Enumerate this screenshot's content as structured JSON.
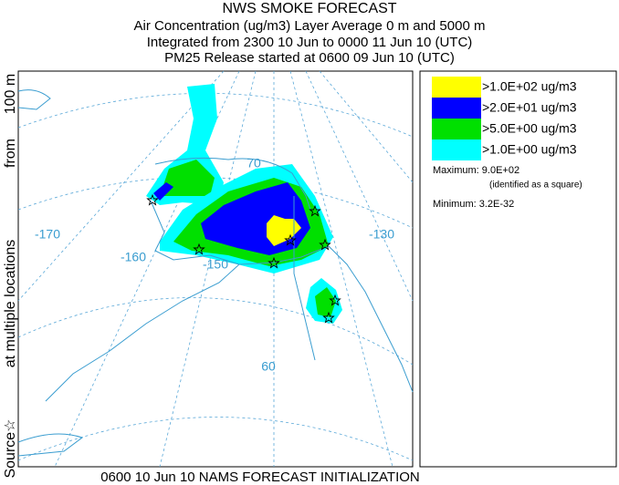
{
  "header": {
    "title": "NWS SMOKE FORECAST",
    "lines": [
      "Air Concentration (ug/m3) Layer Average    0 m and  5000 m",
      "Integrated from 2300 10 Jun to 0000 11 Jun 10 (UTC)",
      "PM25 Release started at 0600 09 Jun 10 (UTC)"
    ]
  },
  "side_label": [
    "Source☆",
    "at multiple locations",
    "from",
    "100 m"
  ],
  "map": {
    "labels": [
      "-170",
      "-160",
      "-150",
      "-130",
      "60",
      "70"
    ]
  },
  "legend": {
    "entries": [
      {
        "label": ">1.0E+02 ug/m3",
        "color": "#ffff00"
      },
      {
        "label": ">2.0E+01 ug/m3",
        "color": "#0000ff"
      },
      {
        "label": ">5.0E+00 ug/m3",
        "color": "#00e000"
      },
      {
        "label": ">1.0E+00 ug/m3",
        "color": "#00ffff"
      }
    ]
  },
  "stats": {
    "maximum": "Maximum: 9.0E+02",
    "maximum_note": "(identified as a square)",
    "minimum": "Minimum: 3.2E-32"
  },
  "footer": "0600 10 Jun 10 NAMS FORECAST INITIALIZATION"
}
